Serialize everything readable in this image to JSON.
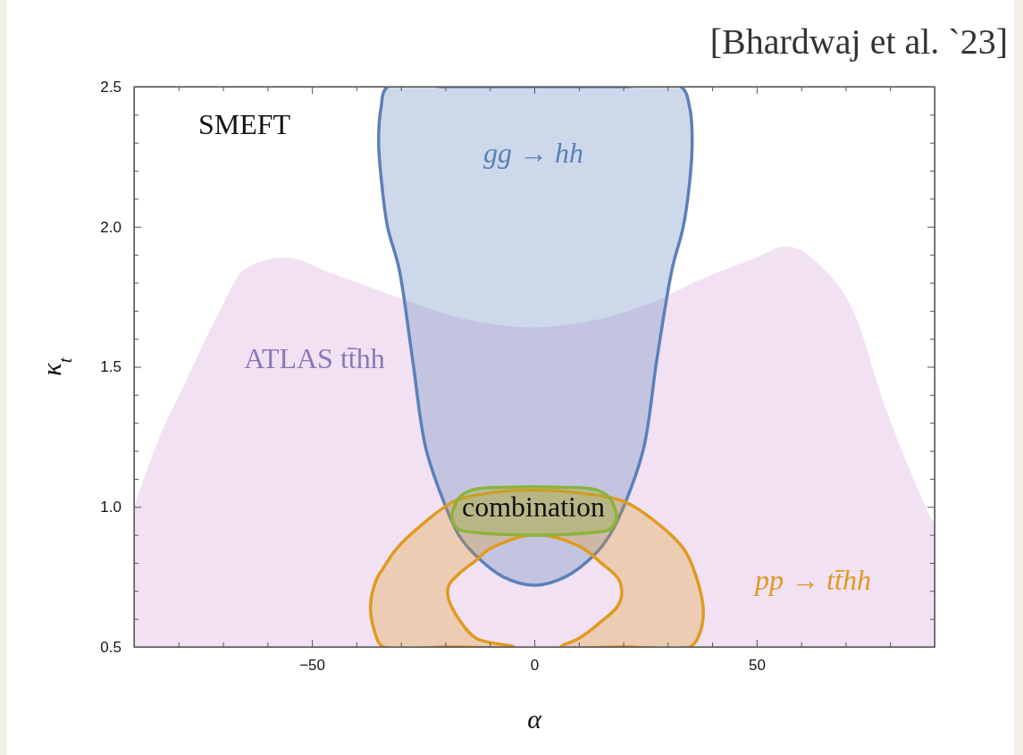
{
  "chart_data": {
    "type": "area",
    "xlabel": "α",
    "ylabel": "κ$_{t}$",
    "xlim": [
      -90,
      90
    ],
    "ylim": [
      0.5,
      2.5
    ],
    "xticks": [
      {
        "value": -80,
        "label": null
      },
      {
        "value": -70,
        "label": null
      },
      {
        "value": -60,
        "label": null
      },
      {
        "value": -50,
        "label": "−50"
      },
      {
        "value": -40,
        "label": null
      },
      {
        "value": -30,
        "label": null
      },
      {
        "value": -20,
        "label": null
      },
      {
        "value": -10,
        "label": null
      },
      0,
      {
        "value": 10,
        "label": null
      },
      {
        "value": 20,
        "label": null
      },
      {
        "value": 30,
        "label": null
      },
      {
        "value": 40,
        "label": null
      },
      50,
      {
        "value": 60,
        "label": null
      },
      {
        "value": 70,
        "label": null
      },
      {
        "value": 80,
        "label": null
      }
    ],
    "yticks": [
      0.5,
      {
        "value": 0.6,
        "label": null
      },
      {
        "value": 0.7,
        "label": null
      },
      {
        "value": 0.8,
        "label": null
      },
      {
        "value": 0.9,
        "label": null
      },
      {
        "value": 1,
        "label": "1.0"
      },
      {
        "value": 1.1,
        "label": null
      },
      {
        "value": 1.2,
        "label": null
      },
      {
        "value": 1.3,
        "label": null
      },
      {
        "value": 1.4,
        "label": null
      },
      1.5,
      {
        "value": 1.6,
        "label": null
      },
      {
        "value": 1.7,
        "label": null
      },
      {
        "value": 1.8,
        "label": null
      },
      {
        "value": 1.9,
        "label": null
      },
      {
        "value": 2,
        "label": "2.0"
      },
      {
        "value": 2.1,
        "label": null
      },
      {
        "value": 2.2,
        "label": null
      },
      {
        "value": 2.3,
        "label": null
      },
      {
        "value": 2.4,
        "label": null
      },
      2.5
    ],
    "series": [
      {
        "color": "#e5c9e8",
        "x": [
          -90,
          -85,
          -78,
          -71,
          -65,
          -56,
          -45,
          -31,
          -18,
          0,
          11.6,
          25,
          38.6,
          50,
          56.6,
          65,
          72,
          78.6,
          85,
          89.6,
          90
        ],
        "values": [
          1.0,
          1.22,
          1.46,
          1.69,
          1.85,
          1.89,
          1.83,
          1.75,
          1.68,
          1.64,
          1.66,
          1.72,
          1.82,
          1.89,
          1.93,
          1.85,
          1.69,
          1.37,
          1.11,
          0.95,
          0.94
        ]
      },
      {
        "type": "area",
        "line_style": "solid",
        "color": "#5b80b9",
        "x": [
          -33,
          -34.5,
          -35,
          -34.4,
          -33,
          -30.4,
          -27.4,
          -24.4,
          -20.4,
          -17,
          -13.4,
          -7,
          0,
          7,
          13.6,
          17,
          20.6,
          24.6,
          27.6,
          31,
          33.5,
          35,
          35.5,
          35,
          33,
          20,
          0,
          -20
        ],
        "values": [
          2.5,
          2.42,
          2.3,
          2.17,
          2.0,
          1.85,
          1.53,
          1.21,
          1.02,
          0.9,
          0.83,
          0.75,
          0.72,
          0.75,
          0.83,
          0.9,
          1.02,
          1.21,
          1.53,
          1.85,
          2.0,
          2.17,
          2.3,
          2.42,
          2.5,
          2.5,
          2.5,
          2.5
        ]
      },
      {
        "type": "area",
        "line_style": "solid",
        "color": "#e09a20",
        "x": [
          -34,
          -36,
          -36.8,
          -35.5,
          -34,
          -31,
          -25,
          -18,
          -10,
          0,
          10,
          20,
          27,
          33.6,
          36,
          38,
          37,
          35,
          20,
          6,
          10,
          15,
          18.5,
          19.6,
          19,
          15,
          10,
          0,
          -10,
          -13,
          -17,
          -19.2,
          -19.4,
          -17,
          -13,
          -4.6,
          -20
        ],
        "values": [
          0.5,
          0.56,
          0.65,
          0.74,
          0.78,
          0.85,
          0.94,
          1.02,
          1.05,
          1.06,
          1.05,
          1.02,
          0.95,
          0.85,
          0.77,
          0.63,
          0.54,
          0.5,
          0.5,
          0.5,
          0.53,
          0.59,
          0.64,
          0.68,
          0.74,
          0.8,
          0.86,
          0.9,
          0.85,
          0.81,
          0.76,
          0.72,
          0.68,
          0.6,
          0.53,
          0.5,
          0.5
        ]
      },
      {
        "type": "area",
        "line_style": "solid",
        "color": "#8db33a",
        "x": [
          -18.5,
          -17,
          -14,
          -5,
          5,
          14,
          17,
          18.5,
          17,
          14,
          5,
          -5,
          -14,
          -17
        ],
        "values": [
          0.96,
          1.03,
          1.06,
          1.07,
          1.07,
          1.06,
          1.03,
          0.96,
          0.92,
          0.91,
          0.9,
          0.9,
          0.91,
          0.92
        ]
      }
    ],
    "annotations": [
      "[Bhardwaj et al. `23]",
      "SMEFT",
      "gg → hh",
      "ATLAS tt̄hh",
      "combination",
      "pp → tt̄hh"
    ]
  }
}
